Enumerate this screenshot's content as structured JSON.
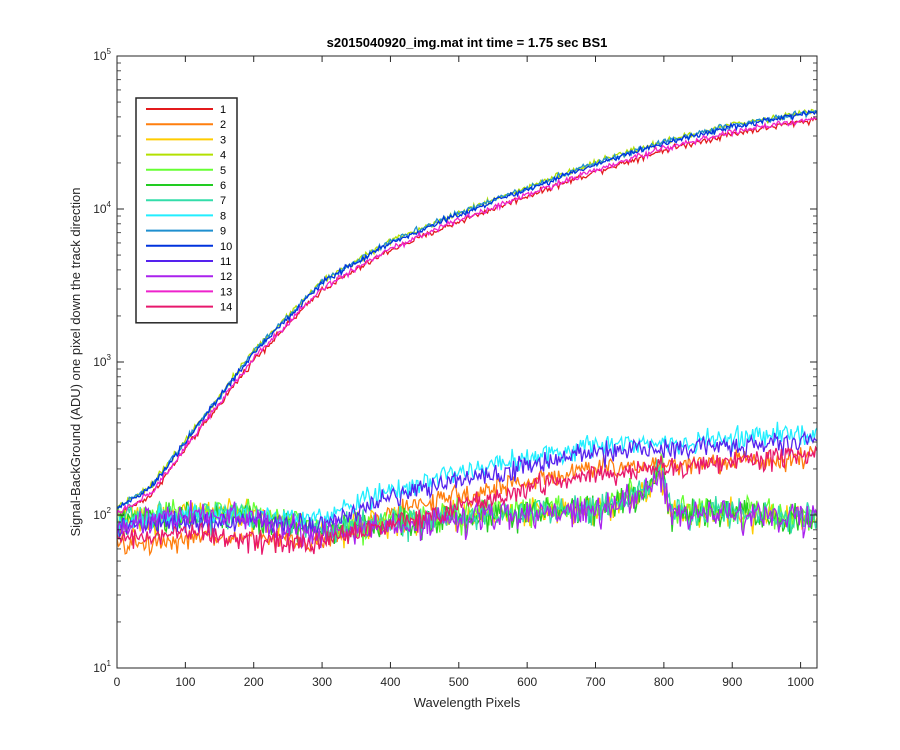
{
  "chart_data": {
    "type": "line",
    "title": "s2015040920_img.mat int time = 1.75 sec   BS1",
    "xlabel": "Wavelength Pixels",
    "ylabel": "Signal-BackGround (ADU) one pixel down the track direction",
    "xlim": [
      0,
      1024
    ],
    "ylim": [
      10,
      100000
    ],
    "yscale": "log",
    "x_ticks": [
      "0",
      "100",
      "200",
      "300",
      "400",
      "500",
      "600",
      "700",
      "800",
      "900",
      "1000"
    ],
    "y_ticks": [
      {
        "base": "10",
        "exp": "1"
      },
      {
        "base": "10",
        "exp": "2"
      },
      {
        "base": "10",
        "exp": "3"
      },
      {
        "base": "10",
        "exp": "4"
      },
      {
        "base": "10",
        "exp": "5"
      }
    ],
    "legend_position": "top-left",
    "series": [
      {
        "name": "1",
        "color": "#e31a1c",
        "group": "high",
        "scale": 0.9,
        "x": [
          0,
          50,
          100,
          200,
          300,
          400,
          500,
          600,
          700,
          800,
          900,
          1024
        ],
        "y": [
          110,
          150,
          300,
          1150,
          3300,
          6000,
          9200,
          13500,
          19500,
          27000,
          34500,
          43000
        ]
      },
      {
        "name": "2",
        "color": "#ff7f0e",
        "group": "mid",
        "scale": 0.74,
        "x": [
          0,
          100,
          200,
          300,
          400,
          500,
          600,
          700,
          800,
          900,
          1024
        ],
        "y": [
          85,
          95,
          95,
          90,
          140,
          180,
          225,
          275,
          285,
          305,
          330
        ]
      },
      {
        "name": "3",
        "color": "#ffcc00",
        "group": "low",
        "scale": 1.0,
        "x": [
          0,
          100,
          200,
          300,
          400,
          500,
          600,
          700,
          780,
          795,
          810,
          900,
          1024
        ],
        "y": [
          90,
          105,
          100,
          80,
          90,
          100,
          105,
          112,
          150,
          215,
          105,
          105,
          95
        ]
      },
      {
        "name": "4",
        "color": "#b3e000",
        "group": "high",
        "scale": 1.03,
        "x": [
          0,
          50,
          100,
          200,
          300,
          400,
          500,
          600,
          700,
          800,
          900,
          1024
        ],
        "y": [
          110,
          150,
          300,
          1150,
          3300,
          6000,
          9200,
          13500,
          19500,
          27000,
          34500,
          43000
        ]
      },
      {
        "name": "5",
        "color": "#66ff33",
        "group": "low",
        "scale": 1.02,
        "x": [
          0,
          100,
          200,
          300,
          400,
          500,
          600,
          700,
          780,
          795,
          810,
          900,
          1024
        ],
        "y": [
          90,
          105,
          100,
          80,
          90,
          100,
          105,
          112,
          150,
          215,
          105,
          105,
          95
        ]
      },
      {
        "name": "6",
        "color": "#22cc22",
        "group": "low",
        "scale": 0.98,
        "x": [
          0,
          100,
          200,
          300,
          400,
          500,
          600,
          700,
          780,
          795,
          810,
          900,
          1024
        ],
        "y": [
          90,
          105,
          100,
          80,
          90,
          100,
          105,
          112,
          150,
          215,
          105,
          105,
          95
        ]
      },
      {
        "name": "7",
        "color": "#33ddaa",
        "group": "low",
        "scale": 1.0,
        "x": [
          0,
          100,
          200,
          300,
          400,
          500,
          600,
          700,
          780,
          795,
          810,
          900,
          1024
        ],
        "y": [
          90,
          105,
          100,
          80,
          90,
          100,
          105,
          112,
          150,
          215,
          105,
          105,
          95
        ]
      },
      {
        "name": "8",
        "color": "#22eeff",
        "group": "mid",
        "scale": 1.05,
        "x": [
          0,
          100,
          200,
          300,
          400,
          500,
          600,
          700,
          800,
          900,
          1024
        ],
        "y": [
          85,
          95,
          95,
          90,
          140,
          180,
          225,
          275,
          285,
          305,
          330
        ]
      },
      {
        "name": "9",
        "color": "#1f8fcf",
        "group": "high",
        "scale": 1.02,
        "x": [
          0,
          50,
          100,
          200,
          300,
          400,
          500,
          600,
          700,
          800,
          900,
          1024
        ],
        "y": [
          110,
          150,
          300,
          1150,
          3300,
          6000,
          9200,
          13500,
          19500,
          27000,
          34500,
          43000
        ]
      },
      {
        "name": "10",
        "color": "#0033dd",
        "group": "high",
        "scale": 1.0,
        "x": [
          0,
          50,
          100,
          200,
          300,
          400,
          500,
          600,
          700,
          800,
          900,
          1024
        ],
        "y": [
          110,
          150,
          300,
          1150,
          3300,
          6000,
          9200,
          13500,
          19500,
          27000,
          34500,
          43000
        ]
      },
      {
        "name": "11",
        "color": "#5522ee",
        "group": "mid",
        "scale": 0.95,
        "x": [
          0,
          100,
          200,
          300,
          400,
          500,
          600,
          700,
          800,
          900,
          1024
        ],
        "y": [
          85,
          95,
          95,
          90,
          140,
          180,
          225,
          275,
          285,
          305,
          330
        ]
      },
      {
        "name": "12",
        "color": "#aa22ee",
        "group": "low",
        "scale": 0.96,
        "x": [
          0,
          100,
          200,
          300,
          400,
          500,
          600,
          700,
          780,
          795,
          810,
          900,
          1024
        ],
        "y": [
          90,
          105,
          100,
          80,
          90,
          100,
          105,
          112,
          150,
          215,
          105,
          105,
          95
        ]
      },
      {
        "name": "13",
        "color": "#ee22cc",
        "group": "high",
        "scale": 0.92,
        "x": [
          0,
          50,
          100,
          200,
          300,
          400,
          500,
          600,
          700,
          800,
          900,
          1024
        ],
        "y": [
          110,
          150,
          300,
          1150,
          3300,
          6000,
          9200,
          13500,
          19500,
          27000,
          34500,
          43000
        ]
      },
      {
        "name": "14",
        "color": "#e8186c",
        "group": "mid",
        "scale": 0.88,
        "x": [
          0,
          100,
          200,
          300,
          400,
          500,
          600,
          700,
          800,
          900,
          1024
        ],
        "y": [
          80,
          85,
          80,
          75,
          100,
          130,
          170,
          210,
          235,
          255,
          285
        ]
      }
    ]
  }
}
